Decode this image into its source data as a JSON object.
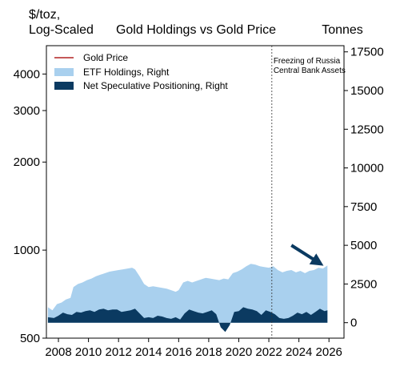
{
  "chart_data": {
    "type": "area",
    "title": "Gold Holdings vs Gold Price",
    "left_axis": {
      "label_lines": [
        "$/toz,",
        "Log-Scaled"
      ],
      "scale": "log",
      "range": [
        500,
        5000
      ],
      "ticks": [
        500,
        1000,
        2000,
        3000,
        4000
      ],
      "tick_labels": [
        "500",
        "1000",
        "2000",
        "3000",
        "4000"
      ]
    },
    "right_axis": {
      "label": "Tonnes",
      "scale": "linear",
      "range": [
        -1000,
        17900
      ],
      "ticks": [
        0,
        2500,
        5000,
        7500,
        10000,
        12500,
        15000,
        17500
      ],
      "tick_labels": [
        "0",
        "2500",
        "5000",
        "7500",
        "10000",
        "12500",
        "15000",
        "17500"
      ]
    },
    "x_axis": {
      "range": [
        2007.2,
        2027.0
      ],
      "ticks": [
        2008,
        2010,
        2012,
        2014,
        2016,
        2018,
        2020,
        2022,
        2024,
        2026
      ],
      "tick_labels": [
        "2008",
        "2010",
        "2012",
        "2014",
        "2016",
        "2018",
        "2020",
        "2022",
        "2024",
        "2026"
      ]
    },
    "grid": false,
    "legend": {
      "placement": "top-left",
      "entries": [
        {
          "name": "Gold Price",
          "color": "#b22222",
          "kind": "line"
        },
        {
          "name": "ETF Holdings, Right",
          "color": "#a9d0ee",
          "kind": "area"
        },
        {
          "name": "Net Speculative Positioning, Right",
          "color": "#0b3a61",
          "kind": "area"
        }
      ]
    },
    "series": [
      {
        "name": "ETF Holdings, Right",
        "axis": "right",
        "color": "#a9d0ee",
        "x": [
          2007.3,
          2007.6,
          2007.9,
          2008.2,
          2008.5,
          2008.8,
          2009.0,
          2009.3,
          2009.6,
          2009.9,
          2010.2,
          2010.5,
          2010.8,
          2011.1,
          2011.4,
          2011.7,
          2012.0,
          2012.3,
          2012.6,
          2012.9,
          2013.1,
          2013.4,
          2013.7,
          2014.0,
          2014.3,
          2014.6,
          2014.9,
          2015.2,
          2015.5,
          2015.8,
          2016.0,
          2016.3,
          2016.6,
          2016.9,
          2017.2,
          2017.5,
          2017.8,
          2018.1,
          2018.4,
          2018.7,
          2019.0,
          2019.3,
          2019.6,
          2019.9,
          2020.2,
          2020.5,
          2020.8,
          2021.1,
          2021.4,
          2021.7,
          2022.0,
          2022.3,
          2022.6,
          2022.9,
          2023.2,
          2023.5,
          2023.8,
          2024.1,
          2024.4,
          2024.7,
          2025.0,
          2025.3,
          2025.6,
          2025.9
        ],
        "values": [
          1000,
          800,
          1200,
          1300,
          1500,
          1600,
          2300,
          2500,
          2600,
          2750,
          2850,
          3000,
          3100,
          3200,
          3300,
          3350,
          3400,
          3450,
          3500,
          3550,
          3450,
          3000,
          2500,
          2300,
          2350,
          2300,
          2250,
          2200,
          2100,
          2000,
          2100,
          2600,
          2700,
          2600,
          2700,
          2800,
          2900,
          2850,
          2800,
          2750,
          2850,
          2800,
          3200,
          3300,
          3450,
          3650,
          3800,
          3750,
          3650,
          3600,
          3550,
          3650,
          3400,
          3250,
          3350,
          3400,
          3250,
          3350,
          3200,
          3350,
          3400,
          3550,
          3500,
          3700
        ]
      },
      {
        "name": "Net Speculative Positioning, Right",
        "axis": "right",
        "color": "#0b3a61",
        "x": [
          2007.3,
          2007.7,
          2008.0,
          2008.3,
          2008.6,
          2008.9,
          2009.2,
          2009.5,
          2009.8,
          2010.1,
          2010.4,
          2010.7,
          2011.0,
          2011.3,
          2011.6,
          2011.9,
          2012.2,
          2012.5,
          2012.8,
          2013.1,
          2013.4,
          2013.7,
          2014.0,
          2014.3,
          2014.6,
          2014.9,
          2015.2,
          2015.5,
          2015.8,
          2016.1,
          2016.4,
          2016.7,
          2017.0,
          2017.3,
          2017.6,
          2017.9,
          2018.2,
          2018.5,
          2018.8,
          2019.1,
          2019.4,
          2019.7,
          2020.0,
          2020.3,
          2020.6,
          2020.9,
          2021.2,
          2021.5,
          2021.8,
          2022.1,
          2022.4,
          2022.7,
          2023.0,
          2023.3,
          2023.6,
          2023.9,
          2024.2,
          2024.5,
          2024.8,
          2025.1,
          2025.4,
          2025.7,
          2025.9
        ],
        "values": [
          350,
          300,
          450,
          650,
          550,
          500,
          700,
          650,
          750,
          800,
          700,
          850,
          900,
          800,
          850,
          850,
          700,
          750,
          800,
          900,
          600,
          300,
          350,
          300,
          450,
          400,
          300,
          250,
          350,
          200,
          600,
          850,
          750,
          650,
          600,
          700,
          800,
          550,
          -300,
          -600,
          -150,
          700,
          750,
          1000,
          900,
          850,
          750,
          500,
          800,
          700,
          550,
          300,
          250,
          300,
          450,
          650,
          550,
          700,
          500,
          700,
          900,
          750,
          800
        ]
      },
      {
        "name": "Gold Price",
        "axis": "left",
        "color": "#b22222",
        "x": [],
        "values": []
      }
    ],
    "annotations": [
      {
        "text_lines": [
          "Freezing of Russia",
          "Central Bank Assets"
        ],
        "x": 2022.2,
        "style": "dashed-vertical-line"
      },
      {
        "text": "",
        "kind": "arrow",
        "from": [
          2023.5,
          5000
        ],
        "to": [
          2025.6,
          3800
        ],
        "color": "#0b3a61"
      }
    ]
  }
}
